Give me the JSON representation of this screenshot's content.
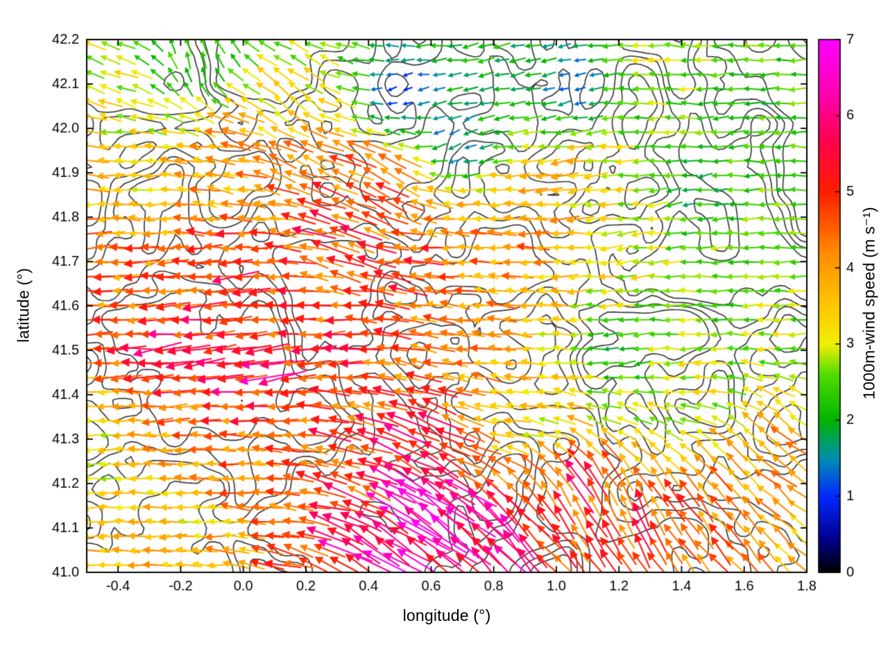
{
  "page": {
    "background": "#ffffff"
  },
  "chart_data": {
    "type": "quiver",
    "title": "",
    "xlabel": "longitude (°)",
    "ylabel": "latitude (°)",
    "xlim": [
      -0.5,
      1.8
    ],
    "ylim": [
      41.0,
      42.2
    ],
    "xticks": [
      -0.4,
      -0.2,
      0.0,
      0.2,
      0.4,
      0.6,
      0.8,
      1.0,
      1.2,
      1.4,
      1.6,
      1.8
    ],
    "yticks": [
      41.0,
      41.1,
      41.2,
      41.3,
      41.4,
      41.5,
      41.6,
      41.7,
      41.8,
      41.9,
      42.0,
      42.1,
      42.2
    ],
    "grid": {
      "on": true,
      "style": "dotted"
    },
    "colorbar": {
      "label": "1000m-wind speed (m s⁻¹)",
      "min": 0,
      "max": 7,
      "ticks": [
        0,
        1,
        2,
        3,
        4,
        5,
        6,
        7
      ],
      "palette": [
        [
          0.0,
          "#000000"
        ],
        [
          0.45,
          "#000090"
        ],
        [
          1.0,
          "#0028ff"
        ],
        [
          1.5,
          "#0090b0"
        ],
        [
          2.0,
          "#00b400"
        ],
        [
          2.6,
          "#50dc00"
        ],
        [
          3.0,
          "#f0f000"
        ],
        [
          3.5,
          "#ffc800"
        ],
        [
          4.2,
          "#ff8c00"
        ],
        [
          5.0,
          "#ff1e00"
        ],
        [
          5.7,
          "#ff0050"
        ],
        [
          6.3,
          "#ff00b4"
        ],
        [
          7.0,
          "#ff00ff"
        ]
      ]
    },
    "grid_step": {
      "lon": 0.05,
      "lat": 0.0325
    },
    "seed": 20,
    "flow_controls_format": [
      "lon",
      "lat",
      "dir_deg_math",
      "speed_ms"
    ],
    "flow_controls": [
      [
        -0.42,
        42.12,
        160,
        3.0
      ],
      [
        -0.15,
        42.15,
        100,
        2.4
      ],
      [
        0.15,
        42.05,
        140,
        3.2
      ],
      [
        0.5,
        42.08,
        205,
        1.0
      ],
      [
        0.8,
        42.15,
        195,
        2.0
      ],
      [
        0.68,
        41.97,
        215,
        1.4
      ],
      [
        1.05,
        42.1,
        200,
        1.3
      ],
      [
        1.3,
        42.15,
        175,
        2.8
      ],
      [
        1.6,
        42.05,
        185,
        2.2
      ],
      [
        1.75,
        41.8,
        180,
        2.4
      ],
      [
        1.45,
        41.85,
        190,
        2.0
      ],
      [
        1.7,
        41.55,
        183,
        2.8
      ],
      [
        1.2,
        41.72,
        188,
        3.2
      ],
      [
        0.9,
        41.78,
        180,
        4.6
      ],
      [
        0.6,
        41.7,
        178,
        5.0
      ],
      [
        0.3,
        41.75,
        160,
        5.2
      ],
      [
        0.2,
        41.9,
        155,
        4.6
      ],
      [
        -0.05,
        41.95,
        170,
        4.0
      ],
      [
        -0.35,
        41.9,
        180,
        3.4
      ],
      [
        -0.45,
        41.7,
        185,
        4.4
      ],
      [
        -0.2,
        41.55,
        188,
        5.4
      ],
      [
        0.05,
        41.45,
        192,
        5.6
      ],
      [
        0.3,
        41.5,
        185,
        5.0
      ],
      [
        0.55,
        41.45,
        170,
        4.6
      ],
      [
        0.8,
        41.55,
        178,
        4.2
      ],
      [
        1.0,
        41.5,
        180,
        3.4
      ],
      [
        1.2,
        41.5,
        195,
        2.0
      ],
      [
        1.45,
        41.45,
        185,
        3.0
      ],
      [
        1.7,
        41.3,
        140,
        4.0
      ],
      [
        1.5,
        41.15,
        125,
        4.6
      ],
      [
        1.25,
        41.12,
        112,
        5.0
      ],
      [
        1.05,
        41.2,
        120,
        5.2
      ],
      [
        0.85,
        41.08,
        130,
        6.2
      ],
      [
        0.62,
        41.12,
        142,
        6.8
      ],
      [
        0.45,
        41.05,
        148,
        6.5
      ],
      [
        0.3,
        41.25,
        165,
        5.0
      ],
      [
        0.1,
        41.2,
        178,
        4.2
      ],
      [
        -0.2,
        41.12,
        182,
        3.4
      ],
      [
        -0.45,
        41.25,
        185,
        3.2
      ],
      [
        0.55,
        41.3,
        155,
        5.6
      ],
      [
        0.9,
        41.33,
        170,
        3.2
      ],
      [
        1.05,
        41.9,
        188,
        3.6
      ],
      [
        0.45,
        41.88,
        150,
        5.0
      ],
      [
        0.0,
        41.7,
        185,
        5.2
      ],
      [
        1.55,
        41.62,
        182,
        2.4
      ]
    ],
    "contours": {
      "levels": [
        0.38,
        0.46,
        0.54,
        0.62
      ],
      "seed": 7,
      "color": "#3b3b3b"
    }
  }
}
